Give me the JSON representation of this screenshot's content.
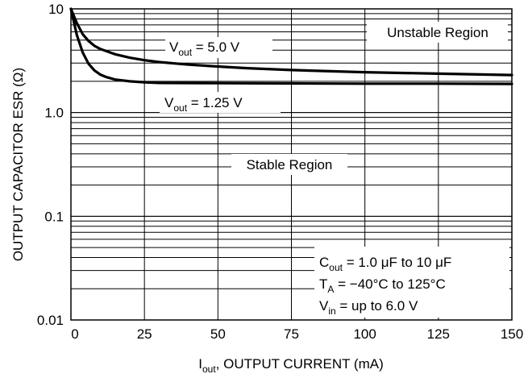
{
  "chart_data": {
    "type": "line",
    "xlabel_main": "I",
    "xlabel_sub": "out",
    "xlabel_rest": ", OUTPUT CURRENT (mA)",
    "ylabel": "OUTPUT CAPACITOR ESR (Ω)",
    "xlim": [
      0,
      150
    ],
    "ylim": [
      0.01,
      10
    ],
    "yscale": "log",
    "grid": true,
    "x_ticks": [
      "0",
      "25",
      "50",
      "75",
      "100",
      "125",
      "150"
    ],
    "x_tick_values": [
      0,
      25,
      50,
      75,
      100,
      125,
      150
    ],
    "y_ticks": [
      "10",
      "1.0",
      "0.1",
      "0.01"
    ],
    "y_tick_values": [
      10,
      1,
      0.1,
      0.01
    ],
    "series": [
      {
        "label_main": "V",
        "label_sub": "out",
        "label_rest": " = 5.0 V",
        "x": [
          0,
          2,
          4,
          6,
          8,
          10,
          15,
          20,
          25,
          30,
          40,
          50,
          60,
          75,
          100,
          125,
          150
        ],
        "y": [
          10,
          7.3,
          5.7,
          4.9,
          4.4,
          4.1,
          3.65,
          3.38,
          3.2,
          3.07,
          2.9,
          2.78,
          2.68,
          2.57,
          2.45,
          2.37,
          2.3
        ]
      },
      {
        "label_main": "V",
        "label_sub": "out",
        "label_rest": " = 1.25 V",
        "x": [
          0,
          2,
          4,
          6,
          8,
          10,
          12,
          15,
          20,
          25,
          30,
          50,
          75,
          100,
          125,
          150
        ],
        "y": [
          10,
          5.6,
          3.8,
          2.95,
          2.55,
          2.32,
          2.2,
          2.08,
          2.0,
          1.96,
          1.93,
          1.92,
          1.91,
          1.9,
          1.9,
          1.89
        ]
      }
    ],
    "annotations": {
      "unstable": "Unstable Region",
      "stable": "Stable Region",
      "cond1_main": "C",
      "cond1_sub": "out",
      "cond1_rest": " = 1.0 μF to 10 μF",
      "cond2_main": "T",
      "cond2_sub": "A",
      "cond2_rest": " = −40°C to 125°C",
      "cond3_main": "V",
      "cond3_sub": "in",
      "cond3_rest": " = up to 6.0 V"
    }
  }
}
